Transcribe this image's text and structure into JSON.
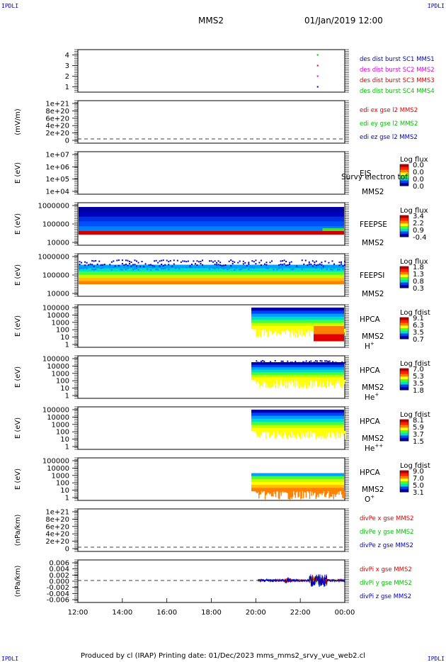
{
  "header": {
    "corner_label": "IPDLI",
    "spacecraft": "MMS2",
    "datetime": "01/Jan/2019 12:00"
  },
  "footer": {
    "text": "Produced by cl (IRAP)   Printing date: 01/Dec/2023   mms_mms2_srvy_vue_web2.cl"
  },
  "colors": {
    "blue": "#0000c0",
    "magenta": "#e000e0",
    "red": "#e00000",
    "green": "#00c000"
  },
  "chart_data": [
    {
      "type": "line",
      "panel": "burst",
      "y_ticks": [
        "1",
        "2",
        "3",
        "4"
      ],
      "ylim": [
        0.5,
        4.5
      ],
      "series": [
        {
          "name": "des dist burst SC1 MMS1",
          "color": "blue",
          "x_hours": [
            22.75
          ],
          "y": [
            1
          ]
        },
        {
          "name": "des dist burst SC2 MMS2",
          "color": "magenta",
          "x_hours": [
            22.75
          ],
          "y": [
            2
          ]
        },
        {
          "name": "des dist burst SC3 MMS3",
          "color": "red",
          "x_hours": [
            22.75
          ],
          "y": [
            3
          ]
        },
        {
          "name": "des dist burst SC4 MMS4",
          "color": "green",
          "x_hours": [
            22.75
          ],
          "y": [
            4
          ]
        }
      ]
    },
    {
      "type": "line",
      "panel": "edi",
      "ylabel": "(mV/m)",
      "y_ticks": [
        "1e+21",
        "8e+20",
        "6e+20",
        "4e+20",
        "2e+20",
        "0"
      ],
      "series": [
        {
          "name": "edi ex gse l2 MMS2",
          "color": "red"
        },
        {
          "name": "edi ey gse l2 MMS2",
          "color": "green"
        },
        {
          "name": "edi ez gse l2 MMS2",
          "color": "blue"
        }
      ]
    },
    {
      "type": "heatmap",
      "panel": "eis",
      "ylabel": "E (eV)",
      "y_ticks": [
        "1e+07",
        "1e+06",
        "1e+05",
        "1e+04"
      ],
      "instrument": "EIS",
      "overlap_text": "Survy electron tof",
      "sc": "MMS2",
      "colorbar_title": "Log flux",
      "colorbar_ticks": [
        "0.0",
        "0.0",
        "0.0",
        "0.0"
      ]
    },
    {
      "type": "heatmap",
      "panel": "feeps_e",
      "ylabel": "E (eV)",
      "y_ticks": [
        "1000000",
        "100000",
        "10000"
      ],
      "instrument": "FEEPSE",
      "sc": "MMS2",
      "colorbar_title": "Log flux",
      "colorbar_ticks": [
        "3.4",
        "2.2",
        "0.9",
        "-0.4"
      ]
    },
    {
      "type": "heatmap",
      "panel": "feeps_i",
      "ylabel": "E (eV)",
      "y_ticks": [
        "1000000",
        "100000",
        "10000"
      ],
      "instrument": "FEEPSI",
      "sc": "MMS2",
      "colorbar_title": "Log flux",
      "colorbar_ticks": [
        "1.8",
        "1.3",
        "0.8",
        "0.3"
      ]
    },
    {
      "type": "heatmap",
      "panel": "hpca_h",
      "ylabel": "E (eV)",
      "y_ticks": [
        "100000",
        "10000",
        "1000",
        "100",
        "10",
        "1"
      ],
      "instrument": "HPCA",
      "sc": "MMS2",
      "species": "H",
      "species_sup": "+",
      "colorbar_title": "Log fdist",
      "colorbar_ticks": [
        "9.1",
        "6.3",
        "3.5",
        "0.7"
      ]
    },
    {
      "type": "heatmap",
      "panel": "hpca_he",
      "ylabel": "E (eV)",
      "y_ticks": [
        "100000",
        "10000",
        "1000",
        "100",
        "10",
        "1"
      ],
      "instrument": "HPCA",
      "sc": "MMS2",
      "species": "He",
      "species_sup": "+",
      "colorbar_title": "Log fdist",
      "colorbar_ticks": [
        "7.0",
        "5.3",
        "3.5",
        "1.8"
      ]
    },
    {
      "type": "heatmap",
      "panel": "hpca_hepp",
      "ylabel": "E (eV)",
      "y_ticks": [
        "100000",
        "10000",
        "1000",
        "100",
        "10",
        "1"
      ],
      "instrument": "HPCA",
      "sc": "MMS2",
      "species": "He",
      "species_sup": "++",
      "colorbar_title": "Log fdist",
      "colorbar_ticks": [
        "8.1",
        "5.9",
        "3.7",
        "1.5"
      ]
    },
    {
      "type": "heatmap",
      "panel": "hpca_o",
      "ylabel": "E (eV)",
      "y_ticks": [
        "100000",
        "10000",
        "1000",
        "100",
        "10",
        "1"
      ],
      "instrument": "HPCA",
      "sc": "MMS2",
      "species": "O",
      "species_sup": "+",
      "colorbar_title": "Log fdist",
      "colorbar_ticks": [
        "9.0",
        "7.0",
        "5.0",
        "3.1"
      ]
    },
    {
      "type": "line",
      "panel": "divpe",
      "ylabel": "(nPa/km)",
      "y_ticks": [
        "1e+21",
        "8e+20",
        "6e+20",
        "4e+20",
        "2e+20",
        "0"
      ],
      "series": [
        {
          "name": "divPe x gse MMS2",
          "color": "red"
        },
        {
          "name": "divPe y gse MMS2",
          "color": "green"
        },
        {
          "name": "divPe z gse MMS2",
          "color": "blue"
        }
      ]
    },
    {
      "type": "line",
      "panel": "divpi",
      "ylabel": "(nPa/km)",
      "y_ticks": [
        "0.006",
        "0.004",
        "0.002",
        "0.000",
        "-0.002",
        "-0.004",
        "-0.006"
      ],
      "ylim": [
        -0.006,
        0.006
      ],
      "series": [
        {
          "name": "divPi x gse MMS2",
          "color": "red"
        },
        {
          "name": "divPi y gse MMS2",
          "color": "green"
        },
        {
          "name": "divPi z gse MMS2",
          "color": "blue"
        }
      ]
    }
  ],
  "x_axis": {
    "tick_labels": [
      "12:00",
      "14:00",
      "16:00",
      "18:00",
      "20:00",
      "22:00",
      "00:00"
    ],
    "range_hours": [
      12,
      24
    ]
  }
}
